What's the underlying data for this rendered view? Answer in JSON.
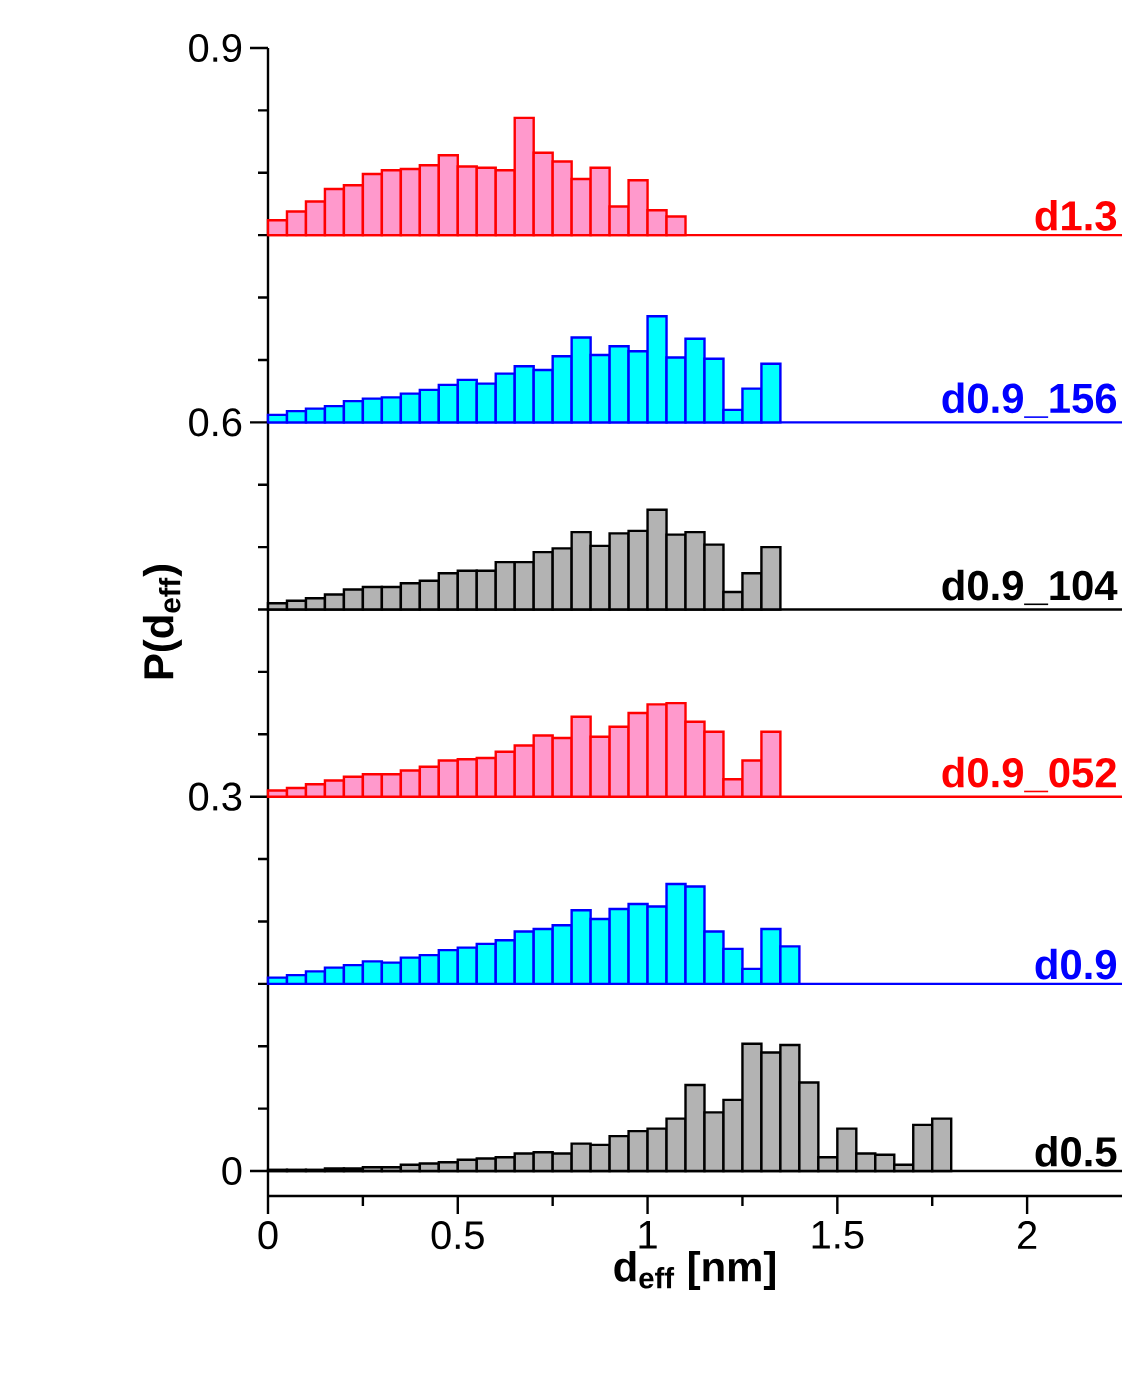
{
  "chart_data": {
    "type": "bar",
    "xlabel": "d$_{eff}$ [nm]",
    "ylabel": "P(d$_{eff}$)",
    "xlim": [
      0,
      2.25
    ],
    "ylim": [
      -0.02,
      0.9
    ],
    "xticks": [
      0,
      {
        "value": 0.25,
        "label": null
      },
      0.5,
      {
        "value": 0.75,
        "label": null
      },
      1,
      {
        "value": 1.25,
        "label": null
      },
      1.5,
      {
        "value": 1.75,
        "label": null
      },
      2
    ],
    "yticks": [
      0,
      {
        "value": 0.05,
        "label": null
      },
      {
        "value": 0.1,
        "label": null
      },
      {
        "value": 0.15,
        "label": null
      },
      {
        "value": 0.2,
        "label": null
      },
      {
        "value": 0.25,
        "label": null
      },
      0.3,
      {
        "value": 0.35,
        "label": null
      },
      {
        "value": 0.4,
        "label": null
      },
      {
        "value": 0.45,
        "label": null
      },
      {
        "value": 0.5,
        "label": null
      },
      {
        "value": 0.55,
        "label": null
      },
      0.6,
      {
        "value": 0.65,
        "label": null
      },
      {
        "value": 0.7,
        "label": null
      },
      {
        "value": 0.75,
        "label": null
      },
      {
        "value": 0.8,
        "label": null
      },
      {
        "value": 0.85,
        "label": null
      },
      0.9
    ],
    "series": [
      {
        "color": "#ff99cc",
        "x": [
          0.025,
          0.075,
          0.125,
          0.175,
          0.225,
          0.275,
          0.325,
          0.375,
          0.425,
          0.475,
          0.525,
          0.575,
          0.625,
          0.675,
          0.725,
          0.775,
          0.825,
          0.875,
          0.925,
          0.975,
          1.025,
          1.075
        ],
        "base": [
          0.75,
          0.75,
          0.75,
          0.75,
          0.75,
          0.75,
          0.75,
          0.75,
          0.75,
          0.75,
          0.75,
          0.75,
          0.75,
          0.75,
          0.75,
          0.75,
          0.75,
          0.75,
          0.75,
          0.75,
          0.75,
          0.75
        ],
        "values": [
          0.012,
          0.019,
          0.027,
          0.037,
          0.04,
          0.049,
          0.052,
          0.053,
          0.056,
          0.064,
          0.055,
          0.054,
          0.052,
          0.094,
          0.066,
          0.059,
          0.045,
          0.054,
          0.023,
          0.044,
          0.02,
          0.015
        ]
      },
      {
        "color": "#00ffff",
        "x": [
          0.025,
          0.075,
          0.125,
          0.175,
          0.225,
          0.275,
          0.325,
          0.375,
          0.425,
          0.475,
          0.525,
          0.575,
          0.625,
          0.675,
          0.725,
          0.775,
          0.825,
          0.875,
          0.925,
          0.975,
          1.025,
          1.075,
          1.125,
          1.175,
          1.225,
          1.275,
          1.325
        ],
        "base": [
          0.6,
          0.6,
          0.6,
          0.6,
          0.6,
          0.6,
          0.6,
          0.6,
          0.6,
          0.6,
          0.6,
          0.6,
          0.6,
          0.6,
          0.6,
          0.6,
          0.6,
          0.6,
          0.6,
          0.6,
          0.6,
          0.6,
          0.6,
          0.6,
          0.6,
          0.6,
          0.6
        ],
        "values": [
          0.006,
          0.009,
          0.011,
          0.013,
          0.017,
          0.019,
          0.02,
          0.023,
          0.026,
          0.03,
          0.034,
          0.031,
          0.039,
          0.045,
          0.042,
          0.053,
          0.068,
          0.054,
          0.061,
          0.057,
          0.085,
          0.052,
          0.067,
          0.051,
          0.01,
          0.027,
          0.047
        ]
      },
      {
        "color": "#b3b3b3",
        "x": [
          0.025,
          0.075,
          0.125,
          0.175,
          0.225,
          0.275,
          0.325,
          0.375,
          0.425,
          0.475,
          0.525,
          0.575,
          0.625,
          0.675,
          0.725,
          0.775,
          0.825,
          0.875,
          0.925,
          0.975,
          1.025,
          1.075,
          1.125,
          1.175,
          1.225,
          1.275,
          1.325
        ],
        "base": [
          0.45,
          0.45,
          0.45,
          0.45,
          0.45,
          0.45,
          0.45,
          0.45,
          0.45,
          0.45,
          0.45,
          0.45,
          0.45,
          0.45,
          0.45,
          0.45,
          0.45,
          0.45,
          0.45,
          0.45,
          0.45,
          0.45,
          0.45,
          0.45,
          0.45,
          0.45,
          0.45
        ],
        "values": [
          0.005,
          0.007,
          0.009,
          0.012,
          0.016,
          0.018,
          0.018,
          0.021,
          0.023,
          0.029,
          0.031,
          0.031,
          0.038,
          0.038,
          0.046,
          0.049,
          0.062,
          0.051,
          0.061,
          0.063,
          0.08,
          0.06,
          0.062,
          0.052,
          0.014,
          0.029,
          0.05
        ]
      },
      {
        "color": "#ff99cc",
        "x": [
          0.025,
          0.075,
          0.125,
          0.175,
          0.225,
          0.275,
          0.325,
          0.375,
          0.425,
          0.475,
          0.525,
          0.575,
          0.625,
          0.675,
          0.725,
          0.775,
          0.825,
          0.875,
          0.925,
          0.975,
          1.025,
          1.075,
          1.125,
          1.175,
          1.225,
          1.275,
          1.325
        ],
        "base": [
          0.3,
          0.3,
          0.3,
          0.3,
          0.3,
          0.3,
          0.3,
          0.3,
          0.3,
          0.3,
          0.3,
          0.3,
          0.3,
          0.3,
          0.3,
          0.3,
          0.3,
          0.3,
          0.3,
          0.3,
          0.3,
          0.3,
          0.3,
          0.3,
          0.3,
          0.3,
          0.3
        ],
        "values": [
          0.005,
          0.007,
          0.01,
          0.013,
          0.016,
          0.018,
          0.018,
          0.021,
          0.024,
          0.029,
          0.03,
          0.031,
          0.036,
          0.041,
          0.049,
          0.047,
          0.064,
          0.048,
          0.056,
          0.067,
          0.074,
          0.075,
          0.06,
          0.052,
          0.014,
          0.029,
          0.052
        ]
      },
      {
        "color": "#00ffff",
        "x": [
          0.025,
          0.075,
          0.125,
          0.175,
          0.225,
          0.275,
          0.325,
          0.375,
          0.425,
          0.475,
          0.525,
          0.575,
          0.625,
          0.675,
          0.725,
          0.775,
          0.825,
          0.875,
          0.925,
          0.975,
          1.025,
          1.075,
          1.125,
          1.175,
          1.225,
          1.275,
          1.325,
          1.375
        ],
        "base": [
          0.15,
          0.15,
          0.15,
          0.15,
          0.15,
          0.15,
          0.15,
          0.15,
          0.15,
          0.15,
          0.15,
          0.15,
          0.15,
          0.15,
          0.15,
          0.15,
          0.15,
          0.15,
          0.15,
          0.15,
          0.15,
          0.15,
          0.15,
          0.15,
          0.15,
          0.15,
          0.15,
          0.15
        ],
        "values": [
          0.005,
          0.007,
          0.01,
          0.013,
          0.015,
          0.018,
          0.017,
          0.021,
          0.023,
          0.027,
          0.029,
          0.032,
          0.035,
          0.042,
          0.044,
          0.047,
          0.059,
          0.052,
          0.06,
          0.064,
          0.062,
          0.08,
          0.078,
          0.042,
          0.028,
          0.012,
          0.044,
          0.03
        ]
      },
      {
        "color": "#b3b3b3",
        "x": [
          0.025,
          0.075,
          0.125,
          0.175,
          0.225,
          0.275,
          0.325,
          0.375,
          0.425,
          0.475,
          0.525,
          0.575,
          0.625,
          0.675,
          0.725,
          0.775,
          0.825,
          0.875,
          0.925,
          0.975,
          1.025,
          1.075,
          1.125,
          1.175,
          1.225,
          1.275,
          1.325,
          1.375,
          1.425,
          1.475,
          1.525,
          1.575,
          1.625,
          1.675,
          1.725,
          1.775
        ],
        "base": [
          0,
          0,
          0,
          0,
          0,
          0,
          0,
          0,
          0,
          0,
          0,
          0,
          0,
          0,
          0,
          0,
          0,
          0,
          0,
          0,
          0,
          0,
          0,
          0,
          0,
          0,
          0,
          0,
          0,
          0,
          0,
          0,
          0,
          0,
          0,
          0
        ],
        "values": [
          0.001,
          0.001,
          0.001,
          0.002,
          0.002,
          0.003,
          0.003,
          0.005,
          0.006,
          0.007,
          0.009,
          0.01,
          0.011,
          0.014,
          0.015,
          0.014,
          0.022,
          0.021,
          0.028,
          0.032,
          0.034,
          0.042,
          0.069,
          0.047,
          0.057,
          0.102,
          0.095,
          0.101,
          0.071,
          0.011,
          0.034,
          0.014,
          0.013,
          0.005,
          0.037,
          0.042
        ]
      }
    ],
    "ref_lines": [
      {
        "axis": "y",
        "value": 0.75,
        "label": "d1.3",
        "color": "#ff0000"
      },
      {
        "axis": "y",
        "value": 0.6,
        "label": "d0.9_156",
        "color": "#0000ff"
      },
      {
        "axis": "y",
        "value": 0.45,
        "label": "d0.9_104",
        "color": "#000000"
      },
      {
        "axis": "y",
        "value": 0.3,
        "label": "d0.9_052",
        "color": "#ff0000"
      },
      {
        "axis": "y",
        "value": 0.15,
        "label": "d0.9",
        "color": "#0000ff"
      },
      {
        "axis": "y",
        "value": 0,
        "label": "d0.5",
        "color": "#000000"
      }
    ]
  }
}
